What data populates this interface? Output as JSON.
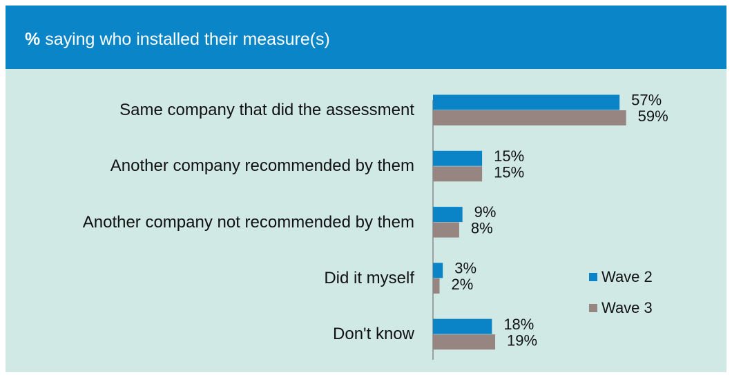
{
  "chart_data": {
    "type": "bar",
    "orientation": "horizontal",
    "title": [
      "%",
      "saying who installed  their measure(s)"
    ],
    "categories": [
      "Same company that did the assessment",
      "Another company recommended by them",
      "Another company not recommended by them",
      "Did it myself",
      "Don't know"
    ],
    "series": [
      {
        "name": "Wave 2",
        "color": "#0a84c7",
        "values": [
          57,
          15,
          9,
          3,
          18
        ],
        "value_labels": [
          "57%",
          "15%",
          "9%",
          "3%",
          "18%"
        ]
      },
      {
        "name": "Wave 3",
        "color": "#968580",
        "values": [
          59,
          15,
          8,
          2,
          19
        ],
        "value_labels": [
          "59%",
          "15%",
          "8%",
          "2%",
          "19%"
        ]
      }
    ],
    "xlim": [
      0,
      100
    ],
    "legend": "right"
  }
}
